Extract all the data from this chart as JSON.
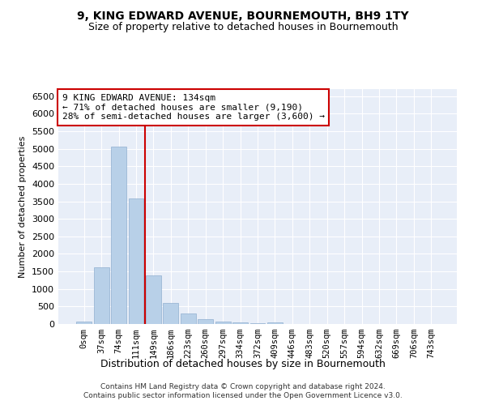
{
  "title": "9, KING EDWARD AVENUE, BOURNEMOUTH, BH9 1TY",
  "subtitle": "Size of property relative to detached houses in Bournemouth",
  "xlabel": "Distribution of detached houses by size in Bournemouth",
  "ylabel": "Number of detached properties",
  "bar_color": "#b8d0e8",
  "bar_edgecolor": "#90b0d0",
  "vline_color": "#cc0000",
  "vline_x_index": 3.5,
  "annotation_text": "9 KING EDWARD AVENUE: 134sqm\n← 71% of detached houses are smaller (9,190)\n28% of semi-detached houses are larger (3,600) →",
  "annotation_box_edgecolor": "#cc0000",
  "categories": [
    "0sqm",
    "37sqm",
    "74sqm",
    "111sqm",
    "149sqm",
    "186sqm",
    "223sqm",
    "260sqm",
    "297sqm",
    "334sqm",
    "372sqm",
    "409sqm",
    "446sqm",
    "483sqm",
    "520sqm",
    "557sqm",
    "594sqm",
    "632sqm",
    "669sqm",
    "706sqm",
    "743sqm"
  ],
  "values": [
    70,
    1620,
    5060,
    3580,
    1390,
    610,
    305,
    140,
    80,
    50,
    30,
    50,
    0,
    0,
    0,
    0,
    0,
    0,
    0,
    0,
    0
  ],
  "ylim": [
    0,
    6700
  ],
  "yticks": [
    0,
    500,
    1000,
    1500,
    2000,
    2500,
    3000,
    3500,
    4000,
    4500,
    5000,
    5500,
    6000,
    6500
  ],
  "footer_line1": "Contains HM Land Registry data © Crown copyright and database right 2024.",
  "footer_line2": "Contains public sector information licensed under the Open Government Licence v3.0.",
  "background_color": "#ffffff",
  "plot_background": "#e8eef8",
  "grid_color": "#ffffff",
  "title_fontsize": 10,
  "subtitle_fontsize": 9,
  "ylabel_fontsize": 8,
  "xlabel_fontsize": 9,
  "tick_fontsize": 8,
  "xtick_fontsize": 7.5,
  "footer_fontsize": 6.5
}
